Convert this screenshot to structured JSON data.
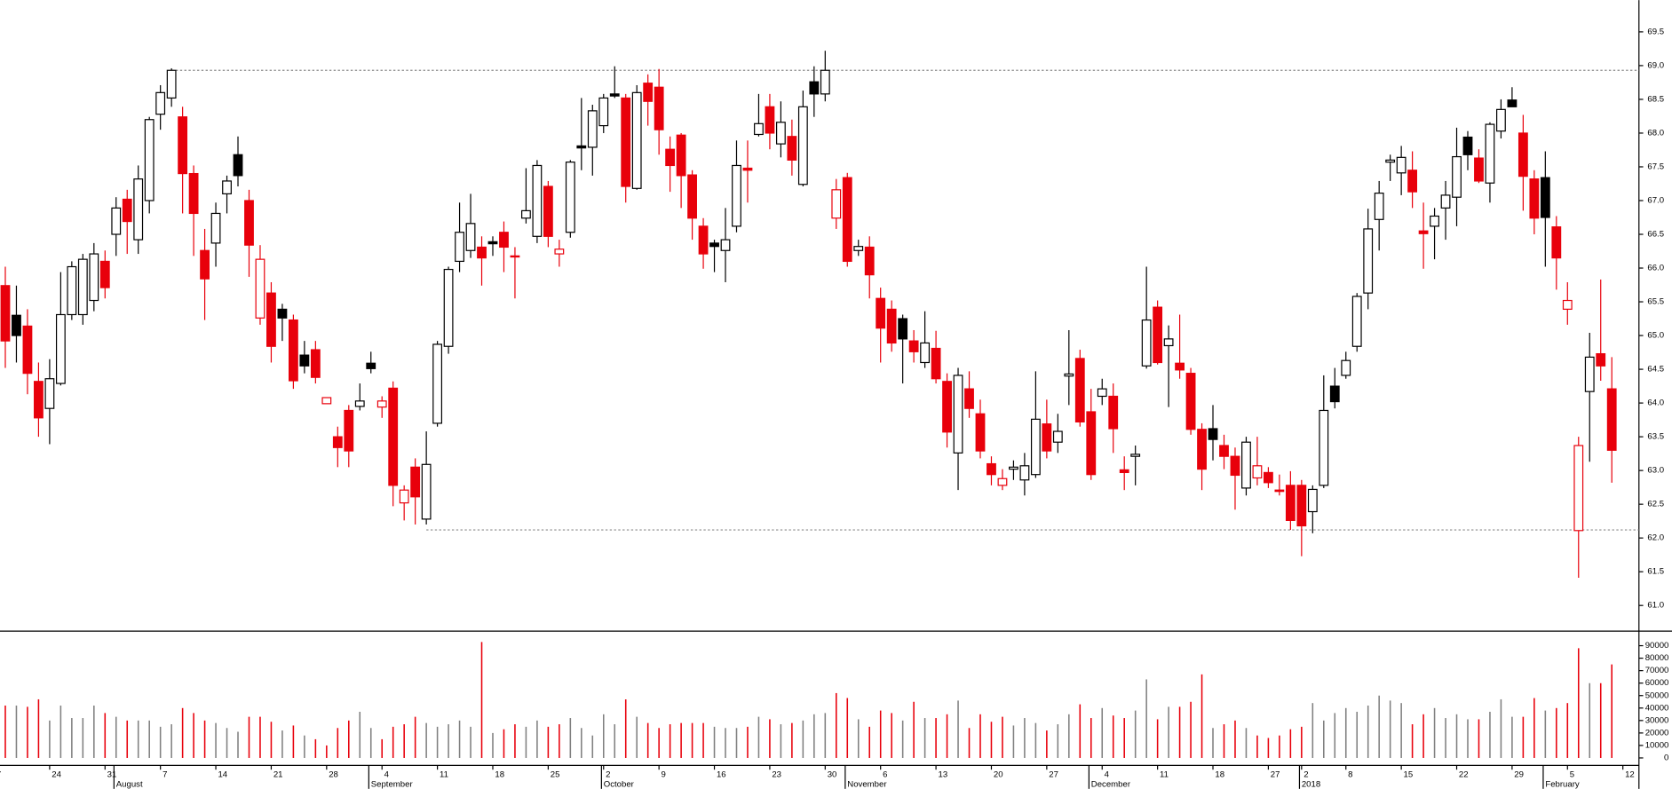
{
  "chart_data": {
    "type": "candlestick",
    "open": [
      65.74,
      65.3,
      65.14,
      64.32,
      63.92,
      64.29,
      65.31,
      65.31,
      65.52,
      66.1,
      66.5,
      67.02,
      66.42,
      67.0,
      68.28,
      68.52,
      68.24,
      67.4,
      66.26,
      66.37,
      67.1,
      67.68,
      67.0,
      65.26,
      65.63,
      65.39,
      65.23,
      64.71,
      64.79,
      63.99,
      63.5,
      63.89,
      63.95,
      64.59,
      63.94,
      64.22,
      62.52,
      63.05,
      62.28,
      63.7,
      64.84,
      66.1,
      66.26,
      66.31,
      66.39,
      66.53,
      66.18,
      66.74,
      66.47,
      67.21,
      66.21,
      66.53,
      67.81,
      67.79,
      68.11,
      68.58,
      68.52,
      67.18,
      68.74,
      68.68,
      67.76,
      67.97,
      67.38,
      66.62,
      66.37,
      66.26,
      66.62,
      67.48,
      67.98,
      68.39,
      67.84,
      67.95,
      67.24,
      68.76,
      68.58,
      66.74,
      67.34,
      66.26,
      66.31,
      65.55,
      65.39,
      65.25,
      64.92,
      64.6,
      64.81,
      64.32,
      63.26,
      64.21,
      63.84,
      63.1,
      62.78,
      63.02,
      62.86,
      62.94,
      63.69,
      63.42,
      64.4,
      64.66,
      63.87,
      64.1,
      64.1,
      63.01,
      63.21,
      64.55,
      65.42,
      64.85,
      64.59,
      64.44,
      63.61,
      63.62,
      63.37,
      63.21,
      62.74,
      62.89,
      62.97,
      62.71,
      62.78,
      62.78,
      62.39,
      62.78,
      64.25,
      64.41,
      64.84,
      65.63,
      66.72,
      67.57,
      67.41,
      67.45,
      66.55,
      66.62,
      66.89,
      67.05,
      67.94,
      67.63,
      67.26,
      68.03,
      68.49,
      68.0,
      67.32,
      67.34,
      66.61,
      65.39,
      62.11,
      64.17,
      64.73,
      64.21
    ],
    "high": [
      66.02,
      65.74,
      65.39,
      64.6,
      64.65,
      65.94,
      66.1,
      66.21,
      66.37,
      66.26,
      67.05,
      67.16,
      67.52,
      68.24,
      68.71,
      68.96,
      68.39,
      67.52,
      66.58,
      66.97,
      67.37,
      67.95,
      67.16,
      66.34,
      65.79,
      65.47,
      65.31,
      64.92,
      64.92,
      64.08,
      63.65,
      63.97,
      64.29,
      64.76,
      64.1,
      64.32,
      62.78,
      63.18,
      63.58,
      64.92,
      66.02,
      66.97,
      67.1,
      66.47,
      66.47,
      66.69,
      66.31,
      67.48,
      67.6,
      67.29,
      66.42,
      67.6,
      68.52,
      68.42,
      68.58,
      68.99,
      68.58,
      68.71,
      68.87,
      68.95,
      67.95,
      68.0,
      67.45,
      66.74,
      66.42,
      66.89,
      67.89,
      67.89,
      68.58,
      68.58,
      68.47,
      68.2,
      68.63,
      68.99,
      69.22,
      67.32,
      67.41,
      66.42,
      66.47,
      65.71,
      65.52,
      65.31,
      65.08,
      65.36,
      65.07,
      64.44,
      64.52,
      64.47,
      64.05,
      63.21,
      63.02,
      63.15,
      63.26,
      64.47,
      64.05,
      63.84,
      65.08,
      64.79,
      64.21,
      64.36,
      64.29,
      63.21,
      63.37,
      66.02,
      65.52,
      65.15,
      65.31,
      64.52,
      63.7,
      63.97,
      63.53,
      63.34,
      63.5,
      63.5,
      63.05,
      62.94,
      62.99,
      62.86,
      62.78,
      64.41,
      64.52,
      64.76,
      65.63,
      66.88,
      67.29,
      67.68,
      67.81,
      67.73,
      66.97,
      66.89,
      67.29,
      68.08,
      68.03,
      67.76,
      68.16,
      68.5,
      68.68,
      68.27,
      67.45,
      67.73,
      66.77,
      65.79,
      63.5,
      65.04,
      65.83,
      64.68
    ],
    "low": [
      64.52,
      64.6,
      64.13,
      63.5,
      63.39,
      64.26,
      65.23,
      65.16,
      65.36,
      65.55,
      66.18,
      66.21,
      66.21,
      66.81,
      68.05,
      68.39,
      66.81,
      66.18,
      65.23,
      66.02,
      66.81,
      67.21,
      65.87,
      65.16,
      64.6,
      64.92,
      64.21,
      64.44,
      64.29,
      63.99,
      63.05,
      63.05,
      63.89,
      64.44,
      63.78,
      62.47,
      62.26,
      62.2,
      62.2,
      63.65,
      64.73,
      65.94,
      66.15,
      65.74,
      66.18,
      65.94,
      65.55,
      66.66,
      66.37,
      66.31,
      66.02,
      66.45,
      67.45,
      67.37,
      68.0,
      68.52,
      66.97,
      67.16,
      68.11,
      67.68,
      67.13,
      66.89,
      66.42,
      65.99,
      65.94,
      65.79,
      66.53,
      66.97,
      67.95,
      67.76,
      67.64,
      67.37,
      67.21,
      68.24,
      68.47,
      66.58,
      66.02,
      66.18,
      65.55,
      64.6,
      64.76,
      64.29,
      64.6,
      64.52,
      64.29,
      63.34,
      62.71,
      63.78,
      63.18,
      62.78,
      62.71,
      62.86,
      62.63,
      62.89,
      63.18,
      63.26,
      63.97,
      63.65,
      62.86,
      63.97,
      63.26,
      62.71,
      62.78,
      64.51,
      64.57,
      63.94,
      64.36,
      63.53,
      62.71,
      63.15,
      63.02,
      62.42,
      62.63,
      62.78,
      62.74,
      62.63,
      62.12,
      61.73,
      62.07,
      62.74,
      63.92,
      64.36,
      64.76,
      65.39,
      66.26,
      67.29,
      67.08,
      66.89,
      65.99,
      66.13,
      66.42,
      66.62,
      67.45,
      67.26,
      66.97,
      67.92,
      68.39,
      66.85,
      66.5,
      66.02,
      65.68,
      65.16,
      61.41,
      63.13,
      64.33,
      62.82
    ],
    "close": [
      64.92,
      65.0,
      64.44,
      63.78,
      64.36,
      65.31,
      66.02,
      66.13,
      66.21,
      65.71,
      66.89,
      66.69,
      67.32,
      68.2,
      68.6,
      68.93,
      67.4,
      66.81,
      65.84,
      66.81,
      67.29,
      67.37,
      66.34,
      66.13,
      64.84,
      65.26,
      64.33,
      64.55,
      64.38,
      64.08,
      63.34,
      63.29,
      64.03,
      64.51,
      64.03,
      62.78,
      62.71,
      62.61,
      63.09,
      64.87,
      65.98,
      66.53,
      66.66,
      66.15,
      66.36,
      66.31,
      66.17,
      66.85,
      67.52,
      66.47,
      66.28,
      67.57,
      67.78,
      68.33,
      68.52,
      68.55,
      67.21,
      68.6,
      68.47,
      68.05,
      67.52,
      67.37,
      66.74,
      66.21,
      66.32,
      66.42,
      67.52,
      67.45,
      68.14,
      68.0,
      68.16,
      67.6,
      68.39,
      68.58,
      68.93,
      67.16,
      66.1,
      66.32,
      65.9,
      65.11,
      64.89,
      64.95,
      64.76,
      64.89,
      64.36,
      63.57,
      64.41,
      63.92,
      63.29,
      62.94,
      62.88,
      63.05,
      63.07,
      63.76,
      63.29,
      63.58,
      64.43,
      63.72,
      62.94,
      64.21,
      63.62,
      62.97,
      63.24,
      65.23,
      64.6,
      64.95,
      64.49,
      63.61,
      63.02,
      63.46,
      63.21,
      62.93,
      63.42,
      63.07,
      62.82,
      62.69,
      62.26,
      62.18,
      62.72,
      63.89,
      64.02,
      64.63,
      65.58,
      66.58,
      67.11,
      67.6,
      67.64,
      67.13,
      66.51,
      66.77,
      67.08,
      67.65,
      67.68,
      67.29,
      68.13,
      68.35,
      68.39,
      67.36,
      66.74,
      66.75,
      66.15,
      65.52,
      63.37,
      64.68,
      64.55,
      63.3
    ],
    "xlim": [
      -0.48,
      147.45
    ],
    "xticks": [
      {
        "value": -1,
        "label": "7"
      },
      {
        "value": 4,
        "label": "24"
      },
      {
        "value": 9,
        "label": "31"
      },
      {
        "value": 14,
        "label": "7"
      },
      {
        "value": 19,
        "label": "14"
      },
      {
        "value": 24,
        "label": "21"
      },
      {
        "value": 29,
        "label": "28"
      },
      {
        "value": 34,
        "label": "4"
      },
      {
        "value": 39,
        "label": "11"
      },
      {
        "value": 44,
        "label": "18"
      },
      {
        "value": 49,
        "label": "25"
      },
      {
        "value": 54,
        "label": "2"
      },
      {
        "value": 59,
        "label": "9"
      },
      {
        "value": 64,
        "label": "16"
      },
      {
        "value": 69,
        "label": "23"
      },
      {
        "value": 74,
        "label": "30"
      },
      {
        "value": 79,
        "label": "6"
      },
      {
        "value": 84,
        "label": "13"
      },
      {
        "value": 89,
        "label": "20"
      },
      {
        "value": 94,
        "label": "27"
      },
      {
        "value": 99,
        "label": "4"
      },
      {
        "value": 104,
        "label": "11"
      },
      {
        "value": 109,
        "label": "18"
      },
      {
        "value": 114,
        "label": "27"
      },
      {
        "value": 117,
        "label": "2"
      },
      {
        "value": 121,
        "label": "8"
      },
      {
        "value": 126,
        "label": "15"
      },
      {
        "value": 131,
        "label": "22"
      },
      {
        "value": 136,
        "label": "29"
      },
      {
        "value": 141,
        "label": "5"
      },
      {
        "value": 146,
        "label": "12"
      }
    ],
    "months": [
      {
        "value": 10,
        "label": "August"
      },
      {
        "value": 33,
        "label": "September"
      },
      {
        "value": 54,
        "label": "October"
      },
      {
        "value": 76,
        "label": "November"
      },
      {
        "value": 98,
        "label": "December"
      },
      {
        "value": 117,
        "label": "2018"
      },
      {
        "value": 139,
        "label": "February"
      }
    ],
    "ylim": [
      60.62,
      69.97
    ],
    "yticks": [
      {
        "value": 61,
        "label": "61.0"
      },
      61.5,
      {
        "value": 62,
        "label": "62.0"
      },
      62.5,
      {
        "value": 63,
        "label": "63.0"
      },
      63.5,
      {
        "value": 64,
        "label": "64.0"
      },
      64.5,
      {
        "value": 65,
        "label": "65.0"
      },
      65.5,
      {
        "value": 66,
        "label": "66.0"
      },
      66.5,
      {
        "value": 67,
        "label": "67.0"
      },
      67.5,
      {
        "value": 68,
        "label": "68.0"
      },
      68.5,
      {
        "value": 69,
        "label": "69.0"
      },
      69.5
    ],
    "hlines": [
      {
        "value": 68.93,
        "from": 15
      },
      {
        "value": 62.12,
        "from": 38
      }
    ],
    "up_color": "#000000",
    "down_color": "#e8000b",
    "volume": {
      "values": [
        42000,
        42000,
        41000,
        47000,
        30000,
        42000,
        32000,
        32000,
        42000,
        36000,
        33000,
        30000,
        30000,
        30000,
        25000,
        27000,
        40000,
        36000,
        30000,
        28000,
        24000,
        21000,
        33000,
        33000,
        29000,
        22000,
        26000,
        18000,
        15000,
        10000,
        24000,
        30000,
        37000,
        24000,
        15000,
        25000,
        27000,
        33000,
        28000,
        25000,
        27000,
        30000,
        25000,
        93000,
        20000,
        23000,
        27000,
        25000,
        30000,
        25000,
        27000,
        32000,
        24000,
        18000,
        35000,
        27000,
        47000,
        33000,
        28000,
        24000,
        27000,
        28000,
        28000,
        28000,
        25000,
        24000,
        24000,
        25000,
        33000,
        31000,
        27000,
        28000,
        30000,
        35000,
        36000,
        52000,
        48000,
        31000,
        25000,
        38000,
        36000,
        30000,
        45000,
        32000,
        32000,
        35000,
        46000,
        24000,
        35000,
        29000,
        33000,
        26000,
        32000,
        28000,
        22000,
        27000,
        35000,
        43000,
        32000,
        40000,
        34000,
        32000,
        38000,
        63000,
        31000,
        41000,
        41000,
        45000,
        67000,
        24000,
        27000,
        30000,
        24000,
        18000,
        16000,
        18000,
        23000,
        25000,
        44000,
        30000,
        36000,
        40000,
        37000,
        42000,
        50000,
        46000,
        44000,
        27000,
        35000,
        40000,
        32000,
        35000,
        31000,
        31000,
        37000,
        47000,
        33000,
        33000,
        48000,
        38000,
        40000,
        44000,
        88000,
        60000,
        60000,
        75000
      ],
      "ylim": [
        -6000,
        100000
      ],
      "yticks": [
        0,
        10000,
        20000,
        30000,
        40000,
        50000,
        60000,
        70000,
        80000,
        90000
      ],
      "up_color": "#808080"
    }
  }
}
